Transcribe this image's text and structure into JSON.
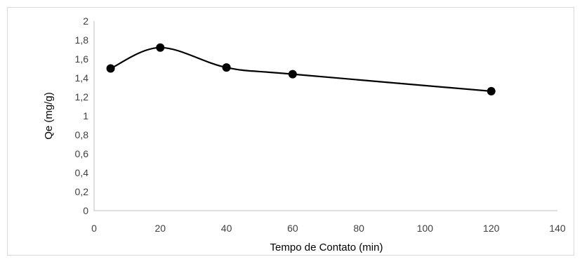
{
  "chart_data": {
    "type": "line",
    "title": "",
    "xlabel": "Tempo de Contato (min)",
    "ylabel": "Qe (mg/g)",
    "xlim": [
      0,
      140
    ],
    "ylim": [
      0,
      2
    ],
    "x_ticks": [
      "0",
      "20",
      "40",
      "60",
      "80",
      "100",
      "120",
      "140"
    ],
    "y_ticks": [
      "0",
      "0,2",
      "0,4",
      "0,6",
      "0,8",
      "1",
      "1,2",
      "1,4",
      "1,6",
      "1,8",
      "2"
    ],
    "grid": false,
    "legend": "none",
    "smoothed": true,
    "series": [
      {
        "x": [
          5,
          20,
          40,
          60,
          120
        ],
        "y": [
          1.5,
          1.72,
          1.51,
          1.44,
          1.26
        ],
        "color": "#000000",
        "marker": "circle"
      }
    ]
  }
}
